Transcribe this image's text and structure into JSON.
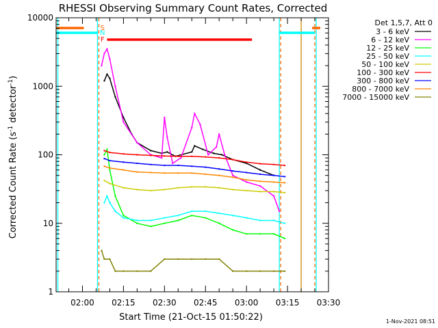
{
  "chart_data": {
    "type": "line",
    "title": "RHESSI Observing Summary Count Rates, Corrected",
    "xlabel": "Start Time (21-Oct-15 01:50:22)",
    "ylabel_parts": [
      "Corrected Count Rate (s",
      "-1",
      " detector",
      "-1",
      ")"
    ],
    "yscale": "log",
    "ylim": [
      1,
      10000
    ],
    "xlim": [
      "01:50:22",
      "03:30:00"
    ],
    "x_tick_labels": [
      "02:00",
      "02:15",
      "02:30",
      "02:45",
      "03:00",
      "03:15",
      "03:30"
    ],
    "y_tick_labels": [
      "1",
      "10",
      "100",
      "1000",
      "10000"
    ],
    "legend_title": "Det 1,5,7, Att 0",
    "legend_position": "right",
    "timestamp": "1-Nov-2021 08:51",
    "flag_labels": [
      "S",
      "N",
      "F"
    ],
    "series": [
      {
        "name": "3 - 6 keV",
        "color": "#000000",
        "x": [
          "02:08",
          "02:09",
          "02:10",
          "02:12",
          "02:15",
          "02:18",
          "02:20",
          "02:25",
          "02:29",
          "02:31",
          "02:34",
          "02:40",
          "02:41",
          "02:44",
          "02:48",
          "02:51",
          "02:55",
          "03:00",
          "03:05",
          "03:10"
        ],
        "y": [
          1200,
          1500,
          1300,
          700,
          350,
          200,
          150,
          115,
          105,
          110,
          95,
          110,
          135,
          120,
          105,
          100,
          85,
          75,
          60,
          50
        ]
      },
      {
        "name": "6 - 12 keV",
        "color": "#ff00ff",
        "x": [
          "02:07",
          "02:08",
          "02:09",
          "02:10",
          "02:12",
          "02:15",
          "02:20",
          "02:25",
          "02:29",
          "02:30",
          "02:31",
          "02:33",
          "02:36",
          "02:40",
          "02:41",
          "02:43",
          "02:46",
          "02:49",
          "02:50",
          "02:52",
          "02:55",
          "03:00",
          "03:05",
          "03:10",
          "03:12"
        ],
        "y": [
          2000,
          3000,
          3500,
          2500,
          1000,
          300,
          150,
          100,
          90,
          350,
          180,
          75,
          90,
          250,
          400,
          280,
          100,
          130,
          200,
          100,
          50,
          40,
          35,
          25,
          15
        ]
      },
      {
        "name": "12 - 25 keV",
        "color": "#00ff00",
        "x": [
          "02:08",
          "02:09",
          "02:10",
          "02:12",
          "02:15",
          "02:20",
          "02:25",
          "02:30",
          "02:35",
          "02:40",
          "02:45",
          "02:50",
          "02:55",
          "03:00",
          "03:05",
          "03:10",
          "03:14"
        ],
        "y": [
          100,
          120,
          60,
          25,
          13,
          10,
          9,
          10,
          11,
          13,
          12,
          10,
          8,
          7,
          7,
          7,
          6
        ]
      },
      {
        "name": "25 - 50 keV",
        "color": "#00ffff",
        "x": [
          "02:08",
          "02:09",
          "02:10",
          "02:12",
          "02:15",
          "02:20",
          "02:25",
          "02:30",
          "02:35",
          "02:40",
          "02:45",
          "02:50",
          "02:55",
          "03:00",
          "03:05",
          "03:10",
          "03:14"
        ],
        "y": [
          20,
          25,
          20,
          15,
          12,
          11,
          11,
          12,
          13,
          15,
          15,
          14,
          13,
          12,
          11,
          11,
          10
        ]
      },
      {
        "name": "50 - 100 keV",
        "color": "#cccc00",
        "x": [
          "02:08",
          "02:10",
          "02:15",
          "02:20",
          "02:25",
          "02:30",
          "02:35",
          "02:40",
          "02:45",
          "02:50",
          "02:55",
          "03:00",
          "03:05",
          "03:10",
          "03:14"
        ],
        "y": [
          42,
          38,
          33,
          31,
          30,
          31,
          33,
          34,
          34,
          33,
          31,
          30,
          29,
          29,
          28
        ]
      },
      {
        "name": "100 - 300 keV",
        "color": "#ff0000",
        "x": [
          "02:08",
          "02:10",
          "02:15",
          "02:20",
          "02:25",
          "02:30",
          "02:35",
          "02:40",
          "02:45",
          "02:50",
          "02:55",
          "03:00",
          "03:05",
          "03:10",
          "03:14"
        ],
        "y": [
          115,
          108,
          103,
          100,
          98,
          96,
          95,
          95,
          93,
          90,
          85,
          78,
          74,
          72,
          70
        ]
      },
      {
        "name": "300 - 800 keV",
        "color": "#0000ff",
        "x": [
          "02:08",
          "02:10",
          "02:15",
          "02:20",
          "02:25",
          "02:30",
          "02:35",
          "02:40",
          "02:45",
          "02:50",
          "02:55",
          "03:00",
          "03:05",
          "03:10",
          "03:14"
        ],
        "y": [
          88,
          82,
          78,
          75,
          72,
          70,
          70,
          68,
          66,
          62,
          58,
          55,
          52,
          50,
          48
        ]
      },
      {
        "name": "800 - 7000 keV",
        "color": "#ff8800",
        "x": [
          "02:08",
          "02:10",
          "02:15",
          "02:20",
          "02:25",
          "02:30",
          "02:35",
          "02:40",
          "02:45",
          "02:50",
          "02:55",
          "03:00",
          "03:05",
          "03:10",
          "03:14"
        ],
        "y": [
          68,
          64,
          60,
          56,
          55,
          54,
          54,
          54,
          52,
          50,
          47,
          43,
          41,
          40,
          39
        ]
      },
      {
        "name": "7000 - 15000 keV",
        "color": "#808000",
        "x": [
          "02:07",
          "02:08",
          "02:10",
          "02:12",
          "02:15",
          "02:20",
          "02:25",
          "02:30",
          "02:35",
          "02:40",
          "02:45",
          "02:50",
          "02:55",
          "03:00",
          "03:05",
          "03:10",
          "03:14"
        ],
        "y": [
          4,
          3,
          3,
          2,
          2,
          2,
          2,
          3,
          3,
          3,
          3,
          3,
          2,
          2,
          2,
          2,
          2
        ]
      }
    ],
    "flags": {
      "S": {
        "color": "#ff6600",
        "intervals": [
          [
            "01:50:22",
            "02:00:30"
          ],
          [
            "03:24",
            "03:27"
          ]
        ]
      },
      "N": {
        "color": "#00ffff",
        "intervals": [
          [
            "01:50:22",
            "02:05:30"
          ],
          [
            "03:12",
            "03:25"
          ]
        ]
      },
      "F": {
        "color": "#ff0000",
        "intervals": [
          [
            "02:09",
            "03:02"
          ]
        ]
      }
    },
    "vertical_lines": [
      {
        "x": "01:51:00",
        "color": "#00ffff",
        "dashed": false
      },
      {
        "x": "02:05:30",
        "color": "#00ffff",
        "dashed": false
      },
      {
        "x": "02:06:00",
        "color": "#ff6600",
        "dashed": true
      },
      {
        "x": "03:12:00",
        "color": "#00ffff",
        "dashed": false
      },
      {
        "x": "03:12:30",
        "color": "#ff6600",
        "dashed": true
      },
      {
        "x": "03:20:00",
        "color": "#cc8800",
        "dashed": false
      },
      {
        "x": "03:25:00",
        "color": "#ff6600",
        "dashed": true
      },
      {
        "x": "03:25:30",
        "color": "#00ffff",
        "dashed": false
      }
    ]
  }
}
